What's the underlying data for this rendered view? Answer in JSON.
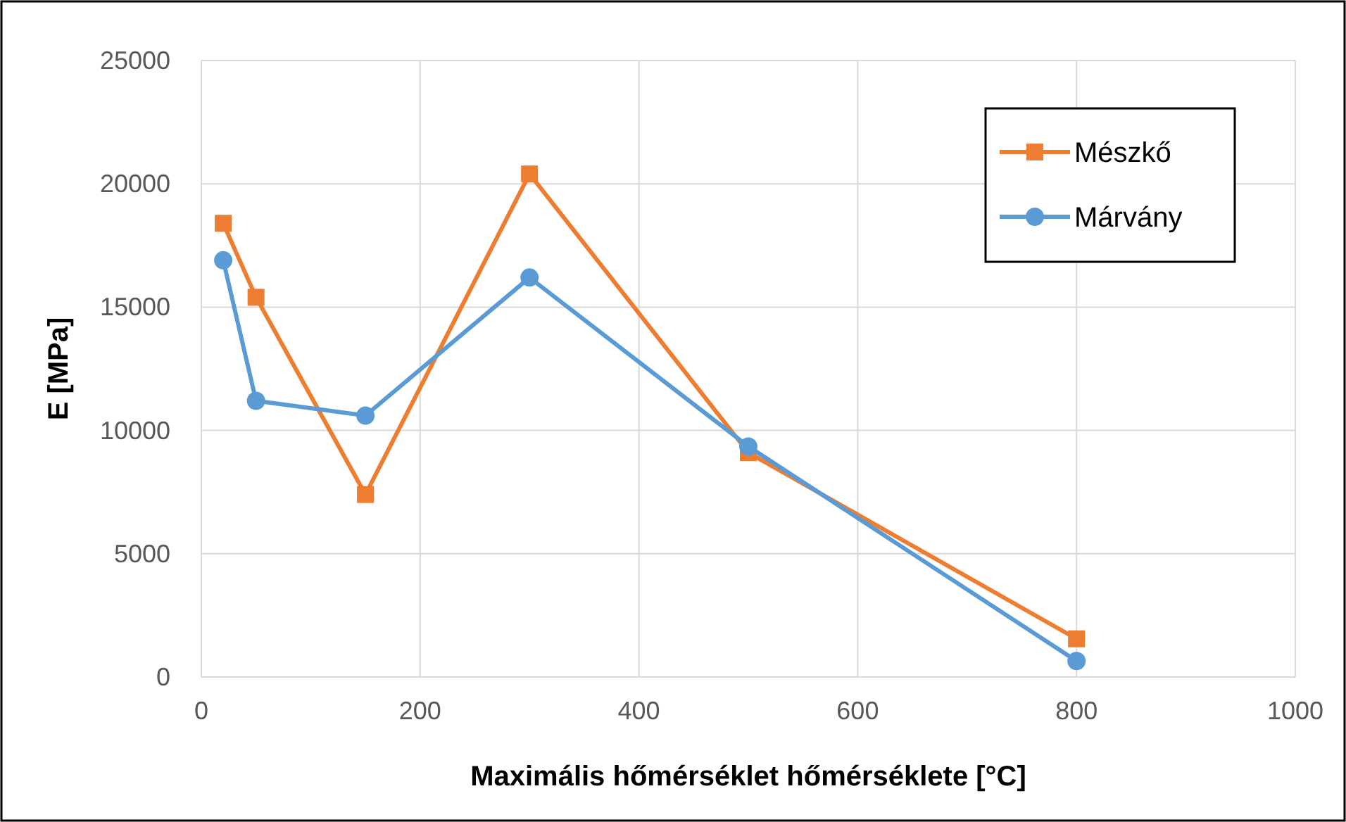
{
  "chart_data": {
    "type": "line",
    "xlabel": "Maximális hőmérséklet hőmérséklete [°C]",
    "ylabel": "E [MPa]",
    "x": [
      20,
      50,
      150,
      300,
      500,
      800
    ],
    "series": [
      {
        "name": "Mészkő",
        "color": "#ed7d31",
        "values": [
          18400,
          15400,
          7400,
          20400,
          9100,
          1550
        ],
        "marker": "square"
      },
      {
        "name": "Márvány",
        "color": "#5b9bd5",
        "values": [
          16900,
          11200,
          10600,
          16200,
          9350,
          650
        ],
        "marker": "circle"
      }
    ],
    "xlim": [
      0,
      1000
    ],
    "xticks": [
      0,
      200,
      400,
      600,
      800,
      1000
    ],
    "ylim": [
      0,
      25000
    ],
    "yticks": [
      0,
      5000,
      10000,
      15000,
      20000,
      25000
    ],
    "grid": true,
    "legend": "top right",
    "line_style": "solid"
  }
}
